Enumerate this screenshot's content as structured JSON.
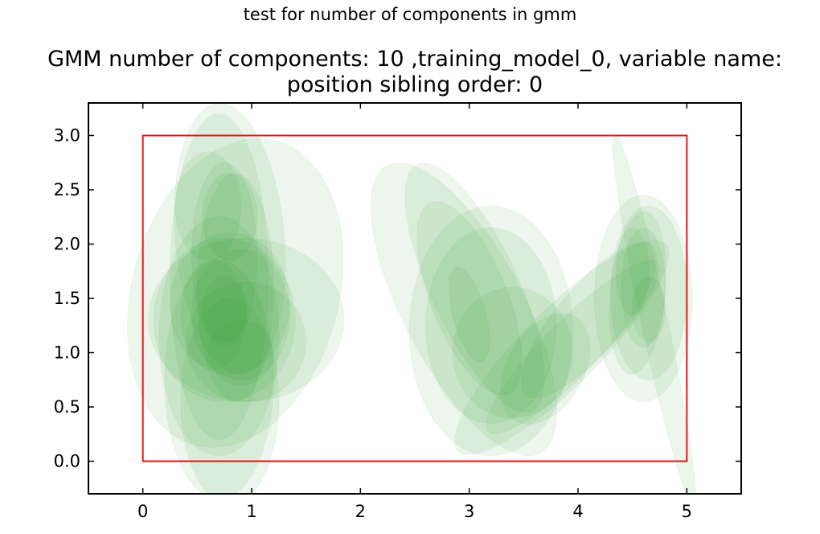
{
  "figure": {
    "suptitle": "test for number of components in gmm",
    "title": "GMM number of components: 10 ,training_model_0, variable name: position sibling order: 0"
  },
  "colors": {
    "ellipse_fill": "#2ca02c",
    "ellipse_opacity": 0.09,
    "box_stroke": "#e8141b",
    "axis": "#000000"
  },
  "chart_data": {
    "type": "scatter",
    "title": "GMM number of components: 10 ,training_model_0, variable name: position sibling order: 0",
    "xlabel": "",
    "ylabel": "",
    "xlim": [
      -0.5,
      5.5
    ],
    "ylim": [
      -0.3,
      3.3
    ],
    "xticks": [
      0,
      1,
      2,
      3,
      4,
      5
    ],
    "yticks": [
      0.0,
      0.5,
      1.0,
      1.5,
      2.0,
      2.5,
      3.0
    ],
    "ytick_labels": [
      "0.0",
      "0.5",
      "1.0",
      "1.5",
      "2.0",
      "2.5",
      "3.0"
    ],
    "grid": false,
    "boundary_box": {
      "x0": 0,
      "y0": 0,
      "x1": 5,
      "y1": 3
    },
    "ellipses": [
      {
        "cx": 0.85,
        "cy": 1.55,
        "rx": 0.95,
        "ry": 1.45,
        "angle": 15
      },
      {
        "cx": 0.7,
        "cy": 1.7,
        "rx": 0.45,
        "ry": 1.5,
        "angle": 0
      },
      {
        "cx": 0.8,
        "cy": 2.05,
        "rx": 0.5,
        "ry": 1.25,
        "angle": -5
      },
      {
        "cx": 0.75,
        "cy": 1.3,
        "rx": 0.65,
        "ry": 0.75,
        "angle": 0
      },
      {
        "cx": 0.95,
        "cy": 1.3,
        "rx": 0.9,
        "ry": 0.75,
        "angle": 0
      },
      {
        "cx": 0.8,
        "cy": 1.45,
        "rx": 0.55,
        "ry": 0.65,
        "angle": 0
      },
      {
        "cx": 0.7,
        "cy": 1.15,
        "rx": 0.55,
        "ry": 1.1,
        "angle": 0
      },
      {
        "cx": 0.85,
        "cy": 1.6,
        "rx": 0.35,
        "ry": 1.05,
        "angle": 0
      },
      {
        "cx": 0.9,
        "cy": 1.35,
        "rx": 0.45,
        "ry": 0.6,
        "angle": 0
      },
      {
        "cx": 0.75,
        "cy": 1.9,
        "rx": 0.3,
        "ry": 0.85,
        "angle": 0
      },
      {
        "cx": 0.7,
        "cy": 0.75,
        "rx": 0.5,
        "ry": 1.1,
        "angle": 0
      },
      {
        "cx": 0.8,
        "cy": 0.55,
        "rx": 0.45,
        "ry": 0.95,
        "angle": 0
      },
      {
        "cx": 0.95,
        "cy": 1.1,
        "rx": 0.55,
        "ry": 0.55,
        "angle": 0
      },
      {
        "cx": 0.65,
        "cy": 1.35,
        "rx": 0.3,
        "ry": 0.5,
        "angle": 0
      },
      {
        "cx": 0.8,
        "cy": 2.25,
        "rx": 0.25,
        "ry": 0.4,
        "angle": 0
      },
      {
        "cx": 0.6,
        "cy": 2.35,
        "rx": 0.3,
        "ry": 0.5,
        "angle": 0
      },
      {
        "cx": 0.9,
        "cy": 1.0,
        "rx": 0.3,
        "ry": 0.3,
        "angle": 0
      },
      {
        "cx": 0.75,
        "cy": 1.4,
        "rx": 0.2,
        "ry": 0.3,
        "angle": 0
      },
      {
        "cx": 2.95,
        "cy": 1.4,
        "rx": 0.55,
        "ry": 1.5,
        "angle": -28
      },
      {
        "cx": 3.2,
        "cy": 1.2,
        "rx": 0.75,
        "ry": 1.15,
        "angle": 0
      },
      {
        "cx": 3.05,
        "cy": 1.6,
        "rx": 0.4,
        "ry": 1.25,
        "angle": -25
      },
      {
        "cx": 3.0,
        "cy": 1.5,
        "rx": 0.35,
        "ry": 0.95,
        "angle": -22
      },
      {
        "cx": 3.2,
        "cy": 1.25,
        "rx": 0.6,
        "ry": 0.9,
        "angle": 0
      },
      {
        "cx": 3.4,
        "cy": 1.0,
        "rx": 0.55,
        "ry": 0.6,
        "angle": 0
      },
      {
        "cx": 3.85,
        "cy": 1.05,
        "rx": 0.35,
        "ry": 1.35,
        "angle": 45
      },
      {
        "cx": 3.95,
        "cy": 1.05,
        "rx": 0.25,
        "ry": 1.1,
        "angle": 45
      },
      {
        "cx": 3.7,
        "cy": 0.85,
        "rx": 0.35,
        "ry": 0.55,
        "angle": 30
      },
      {
        "cx": 3.0,
        "cy": 1.35,
        "rx": 0.15,
        "ry": 0.45,
        "angle": -15
      },
      {
        "cx": 4.6,
        "cy": 1.5,
        "rx": 0.45,
        "ry": 0.95,
        "angle": 0
      },
      {
        "cx": 4.65,
        "cy": 1.55,
        "rx": 0.35,
        "ry": 0.8,
        "angle": 0
      },
      {
        "cx": 4.55,
        "cy": 1.55,
        "rx": 0.25,
        "ry": 0.75,
        "angle": 5
      },
      {
        "cx": 4.7,
        "cy": 1.3,
        "rx": 0.12,
        "ry": 1.75,
        "angle": -12
      },
      {
        "cx": 4.6,
        "cy": 1.6,
        "rx": 0.2,
        "ry": 0.55,
        "angle": 0
      },
      {
        "cx": 4.65,
        "cy": 1.4,
        "rx": 0.15,
        "ry": 0.3,
        "angle": 0
      },
      {
        "cx": 4.5,
        "cy": 1.75,
        "rx": 0.15,
        "ry": 0.4,
        "angle": 0
      },
      {
        "cx": 4.1,
        "cy": 1.3,
        "rx": 0.3,
        "ry": 0.9,
        "angle": 40
      }
    ]
  }
}
